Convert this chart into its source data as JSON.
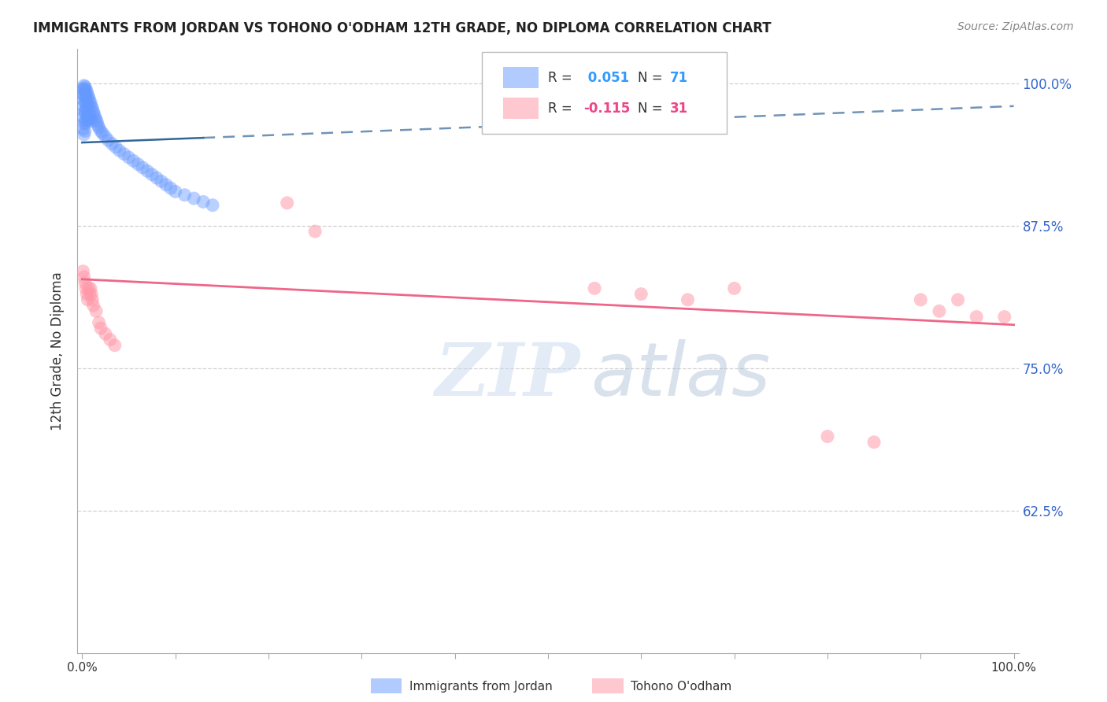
{
  "title": "IMMIGRANTS FROM JORDAN VS TOHONO O'ODHAM 12TH GRADE, NO DIPLOMA CORRELATION CHART",
  "source": "Source: ZipAtlas.com",
  "ylabel": "12th Grade, No Diploma",
  "xlim": [
    0.0,
    1.0
  ],
  "ylim": [
    0.5,
    1.03
  ],
  "y_ticks": [
    0.625,
    0.75,
    0.875,
    1.0
  ],
  "y_tick_labels": [
    "62.5%",
    "75.0%",
    "87.5%",
    "100.0%"
  ],
  "x_ticks": [
    0.0,
    0.1,
    0.2,
    0.3,
    0.4,
    0.5,
    0.6,
    0.7,
    0.8,
    0.9,
    1.0
  ],
  "jordan_R": 0.051,
  "jordan_N": 71,
  "pink_R": -0.115,
  "pink_N": 31,
  "background_color": "#ffffff",
  "grid_color": "#cccccc",
  "jordan_color": "#6699ff",
  "pink_color": "#ff99aa",
  "jordan_line_color": "#336699",
  "pink_line_color": "#ee6688",
  "watermark_zip": "ZIP",
  "watermark_atlas": "atlas",
  "jordan_x": [
    0.001,
    0.001,
    0.001,
    0.001,
    0.001,
    0.002,
    0.002,
    0.002,
    0.002,
    0.002,
    0.002,
    0.002,
    0.003,
    0.003,
    0.003,
    0.003,
    0.003,
    0.003,
    0.003,
    0.004,
    0.004,
    0.004,
    0.004,
    0.004,
    0.005,
    0.005,
    0.005,
    0.005,
    0.006,
    0.006,
    0.006,
    0.007,
    0.007,
    0.007,
    0.008,
    0.008,
    0.009,
    0.009,
    0.01,
    0.01,
    0.011,
    0.012,
    0.013,
    0.014,
    0.015,
    0.016,
    0.017,
    0.018,
    0.02,
    0.022,
    0.025,
    0.028,
    0.032,
    0.036,
    0.04,
    0.045,
    0.05,
    0.055,
    0.06,
    0.065,
    0.07,
    0.075,
    0.08,
    0.085,
    0.09,
    0.095,
    0.1,
    0.11,
    0.12,
    0.13,
    0.14
  ],
  "jordan_y": [
    0.995,
    0.99,
    0.98,
    0.97,
    0.96,
    0.998,
    0.995,
    0.99,
    0.985,
    0.975,
    0.965,
    0.955,
    0.997,
    0.993,
    0.988,
    0.983,
    0.975,
    0.967,
    0.958,
    0.995,
    0.99,
    0.983,
    0.975,
    0.965,
    0.993,
    0.987,
    0.978,
    0.968,
    0.99,
    0.982,
    0.971,
    0.988,
    0.979,
    0.968,
    0.985,
    0.972,
    0.983,
    0.969,
    0.98,
    0.967,
    0.978,
    0.975,
    0.973,
    0.97,
    0.968,
    0.966,
    0.963,
    0.961,
    0.958,
    0.956,
    0.953,
    0.95,
    0.947,
    0.944,
    0.941,
    0.938,
    0.935,
    0.932,
    0.929,
    0.926,
    0.923,
    0.92,
    0.917,
    0.914,
    0.911,
    0.908,
    0.905,
    0.902,
    0.899,
    0.896,
    0.893
  ],
  "pink_x": [
    0.001,
    0.002,
    0.003,
    0.004,
    0.005,
    0.006,
    0.007,
    0.008,
    0.009,
    0.01,
    0.011,
    0.012,
    0.015,
    0.018,
    0.02,
    0.025,
    0.03,
    0.035,
    0.22,
    0.25,
    0.55,
    0.6,
    0.65,
    0.7,
    0.8,
    0.85,
    0.9,
    0.92,
    0.94,
    0.96,
    0.99
  ],
  "pink_y": [
    0.835,
    0.83,
    0.825,
    0.82,
    0.815,
    0.81,
    0.82,
    0.815,
    0.82,
    0.815,
    0.81,
    0.805,
    0.8,
    0.79,
    0.785,
    0.78,
    0.775,
    0.77,
    0.895,
    0.87,
    0.82,
    0.815,
    0.81,
    0.82,
    0.69,
    0.685,
    0.81,
    0.8,
    0.81,
    0.795,
    0.795
  ]
}
